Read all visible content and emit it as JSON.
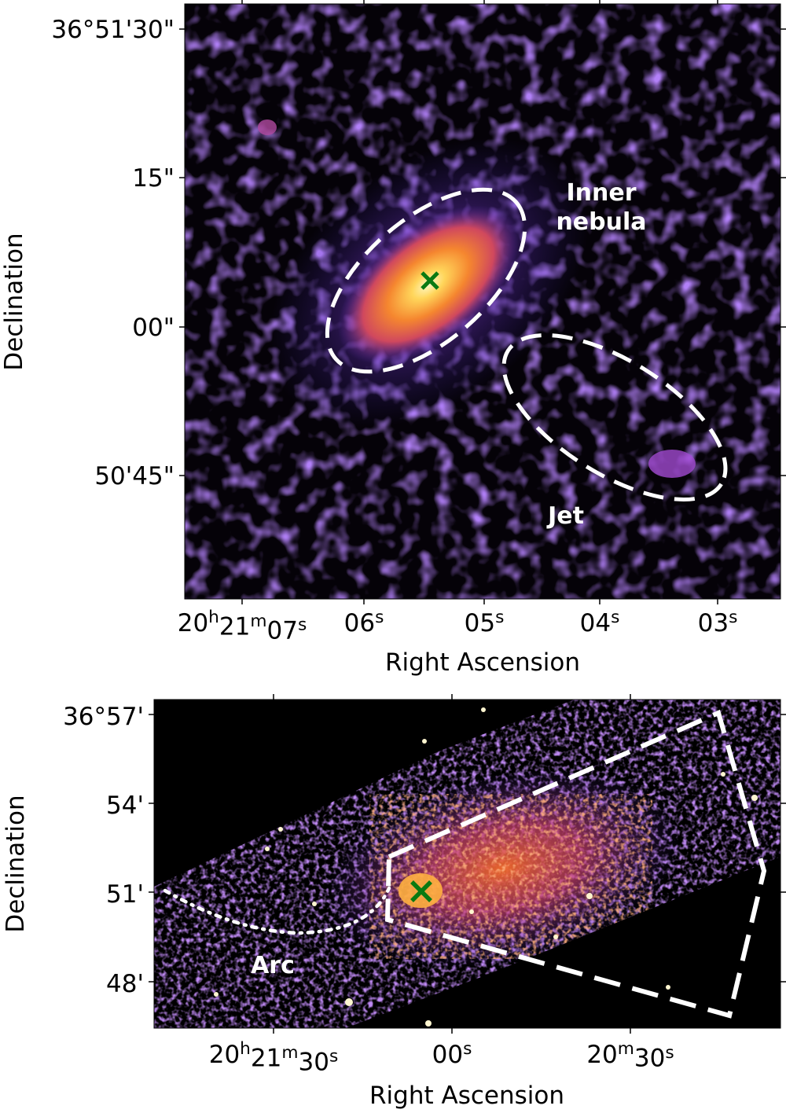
{
  "top_panel": {
    "x_axis_title": "Right Ascension",
    "y_axis_title": "Declination",
    "x_ticks": [
      {
        "main": "20",
        "parts": [
          [
            "h",
            "sup"
          ],
          [
            "21",
            ""
          ],
          [
            "m",
            "sup"
          ],
          [
            "07",
            ""
          ],
          [
            "s",
            "sup"
          ]
        ]
      },
      {
        "main": "06",
        "parts": [
          [
            "s",
            "sup"
          ]
        ]
      },
      {
        "main": "05",
        "parts": [
          [
            "s",
            "sup"
          ]
        ]
      },
      {
        "main": "04",
        "parts": [
          [
            "s",
            "sup"
          ]
        ]
      },
      {
        "main": "03",
        "parts": [
          [
            "s",
            "sup"
          ]
        ]
      }
    ],
    "y_ticks": [
      "36°51'30\"",
      "15\"",
      "00\"",
      "50'45\""
    ],
    "labels": {
      "inner_line1": "Inner",
      "inner_line2": "nebula",
      "jet": "Jet"
    },
    "marker_color": "#0a7a12",
    "region_color": "#ffffff"
  },
  "bottom_panel": {
    "x_axis_title": "Right Ascension",
    "y_axis_title": "Declination",
    "x_ticks": [
      {
        "main": "20",
        "parts": [
          [
            "h",
            "sup"
          ],
          [
            "21",
            ""
          ],
          [
            "m",
            "sup"
          ],
          [
            "30",
            ""
          ],
          [
            "s",
            "sup"
          ]
        ]
      },
      {
        "main": "00",
        "parts": [
          [
            "s",
            "sup"
          ]
        ]
      },
      {
        "main": "20",
        "parts": [
          [
            "m",
            "sup"
          ],
          [
            "30",
            ""
          ],
          [
            "s",
            "sup"
          ]
        ]
      }
    ],
    "y_ticks": [
      "36°57'",
      "54'",
      "51'",
      "48'"
    ],
    "labels": {
      "arc": "Arc"
    },
    "marker_color": "#0a7a12",
    "region_color": "#ffffff"
  },
  "colormap": [
    "#000000",
    "#3a2aa0",
    "#7b3fd0",
    "#c2408a",
    "#f06a2a",
    "#ffd24a",
    "#fff8c8"
  ]
}
